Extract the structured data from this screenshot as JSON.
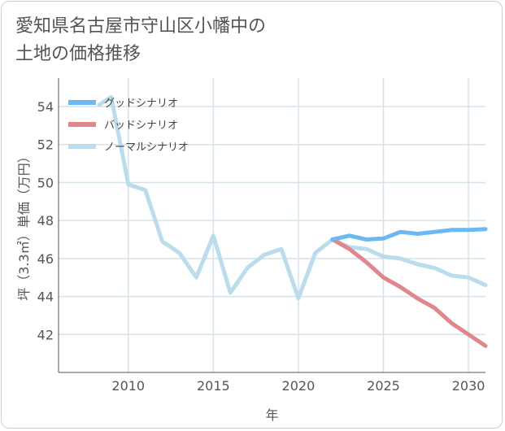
{
  "title_lines": [
    "愛知県名古屋市守山区小幡中の",
    "土地の価格推移"
  ],
  "chart_data": {
    "type": "line",
    "title": "愛知県名古屋市守山区小幡中の土地の価格推移",
    "xlabel": "年",
    "ylabel": "坪（3.3㎡）単価（万円）",
    "xlim": [
      2005.9,
      2031.0
    ],
    "ylim": [
      40.0,
      55.5
    ],
    "xticks": [
      2010,
      2015,
      2020,
      2025,
      2030
    ],
    "yticks": [
      42,
      44,
      46,
      48,
      50,
      52,
      54
    ],
    "grid": true,
    "legend_position": "top-left",
    "series": [
      {
        "name": "グッドシナリオ",
        "color": "#6cb8f0",
        "x": [
          2022,
          2023,
          2024,
          2025,
          2026,
          2027,
          2028,
          2029,
          2030,
          2031
        ],
        "y": [
          47.0,
          47.2,
          47.0,
          47.05,
          47.4,
          47.3,
          47.4,
          47.5,
          47.5,
          47.55
        ]
      },
      {
        "name": "バッドシナリオ",
        "color": "#e0878d",
        "x": [
          2022,
          2023,
          2024,
          2025,
          2026,
          2027,
          2028,
          2029,
          2030,
          2031
        ],
        "y": [
          47.0,
          46.5,
          45.8,
          45.0,
          44.5,
          43.9,
          43.4,
          42.6,
          42.0,
          41.4
        ]
      },
      {
        "name": "ノーマルシナリオ",
        "color": "#badcec",
        "x": [
          2008.3,
          2009,
          2010,
          2011,
          2012,
          2013,
          2014,
          2015,
          2016,
          2017,
          2018,
          2019,
          2020,
          2021,
          2022,
          2023,
          2024,
          2025,
          2026,
          2027,
          2028,
          2029,
          2030,
          2031
        ],
        "y": [
          54.1,
          54.5,
          49.9,
          49.6,
          46.9,
          46.3,
          45.0,
          47.2,
          44.2,
          45.5,
          46.2,
          46.5,
          43.9,
          46.3,
          47.0,
          46.6,
          46.5,
          46.1,
          46.0,
          45.7,
          45.5,
          45.1,
          45.0,
          44.6
        ]
      }
    ]
  }
}
